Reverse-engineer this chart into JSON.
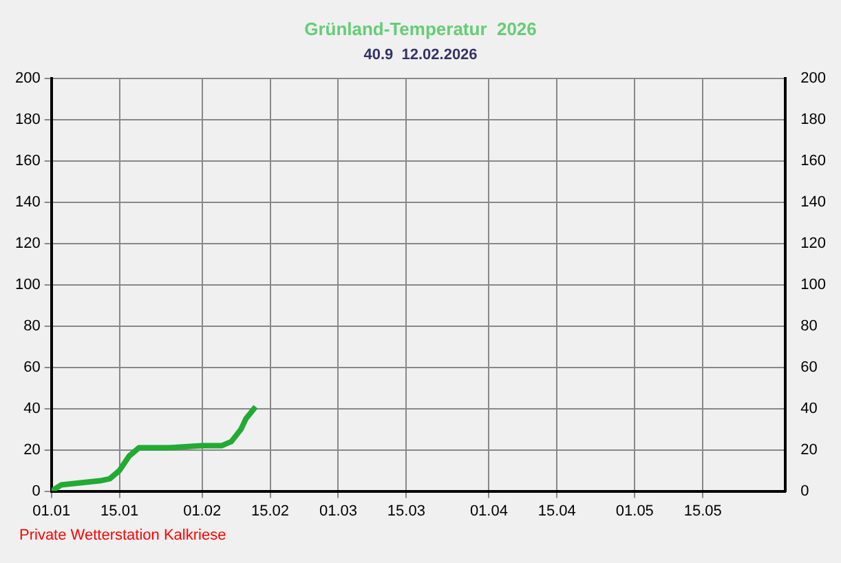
{
  "chart_data": {
    "type": "line",
    "title": "Grünland-Temperatur  2026",
    "subtitle": "40.9  12.02.2026",
    "annotations": [
      "Private Wetterstation Kalkriese"
    ],
    "x": [
      "2026-01-01",
      "2026-01-03",
      "2026-01-07",
      "2026-01-11",
      "2026-01-13",
      "2026-01-15",
      "2026-01-17",
      "2026-01-19",
      "2026-01-25",
      "2026-02-01",
      "2026-02-05",
      "2026-02-07",
      "2026-02-09",
      "2026-02-10",
      "2026-02-12"
    ],
    "series": [
      {
        "color": "#22aa33",
        "values": [
          0,
          3,
          4,
          5,
          6,
          10,
          17,
          21,
          21,
          22,
          22,
          24,
          30,
          35,
          40.9
        ]
      }
    ],
    "xlim": [
      "2026-01-01",
      "2026-06-01"
    ],
    "xticks": [
      {
        "value": "2026-01-01",
        "label": "01.01"
      },
      {
        "value": "2026-01-15",
        "label": "15.01"
      },
      {
        "value": "2026-02-01",
        "label": "01.02"
      },
      {
        "value": "2026-02-15",
        "label": "15.02"
      },
      {
        "value": "2026-03-01",
        "label": "01.03"
      },
      {
        "value": "2026-03-15",
        "label": "15.03"
      },
      {
        "value": "2026-04-01",
        "label": "01.04"
      },
      {
        "value": "2026-04-15",
        "label": "15.04"
      },
      {
        "value": "2026-05-01",
        "label": "01.05"
      },
      {
        "value": "2026-05-15",
        "label": "15.05"
      }
    ],
    "ylim": [
      0,
      200
    ],
    "yticks": [
      0,
      20,
      40,
      60,
      80,
      100,
      120,
      140,
      160,
      180,
      200
    ],
    "y2lim": [
      0,
      200
    ],
    "y2ticks": [
      0,
      20,
      40,
      60,
      80,
      100,
      120,
      140,
      160,
      180,
      200
    ],
    "grid": true,
    "line_style": "solid",
    "marker": "none",
    "legend": false
  }
}
